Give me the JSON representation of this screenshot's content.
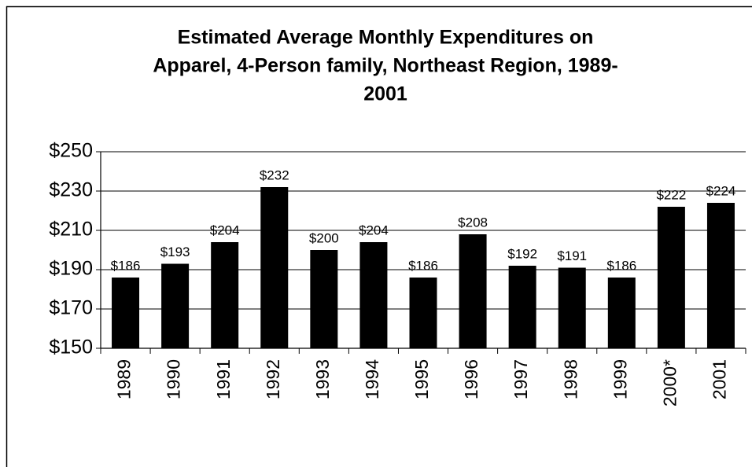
{
  "chart_data": {
    "type": "bar",
    "title": [
      "Estimated Average Monthly Expenditures on",
      "Apparel, 4-Person family, Northeast Region, 1989-",
      "2001"
    ],
    "categories": [
      "1989",
      "1990",
      "1991",
      "1992",
      "1993",
      "1994",
      "1995",
      "1996",
      "1997",
      "1998",
      "1999",
      "2000*",
      "2001"
    ],
    "values": [
      186,
      193,
      204,
      232,
      200,
      204,
      186,
      208,
      192,
      191,
      186,
      222,
      224
    ],
    "value_labels": [
      "$186",
      "$193",
      "$204",
      "$232",
      "$200",
      "$204",
      "$186",
      "$208",
      "$192",
      "$191",
      "$186",
      "$222",
      "$224"
    ],
    "color": "#000000",
    "ylim": [
      150,
      250
    ],
    "yticks": [
      {
        "value": 150,
        "label": "$150"
      },
      {
        "value": 170,
        "label": "$170"
      },
      {
        "value": 190,
        "label": "$190"
      },
      {
        "value": 210,
        "label": "$210"
      },
      {
        "value": 230,
        "label": "$230"
      },
      {
        "value": 250,
        "label": "$250"
      }
    ],
    "grid": true
  }
}
